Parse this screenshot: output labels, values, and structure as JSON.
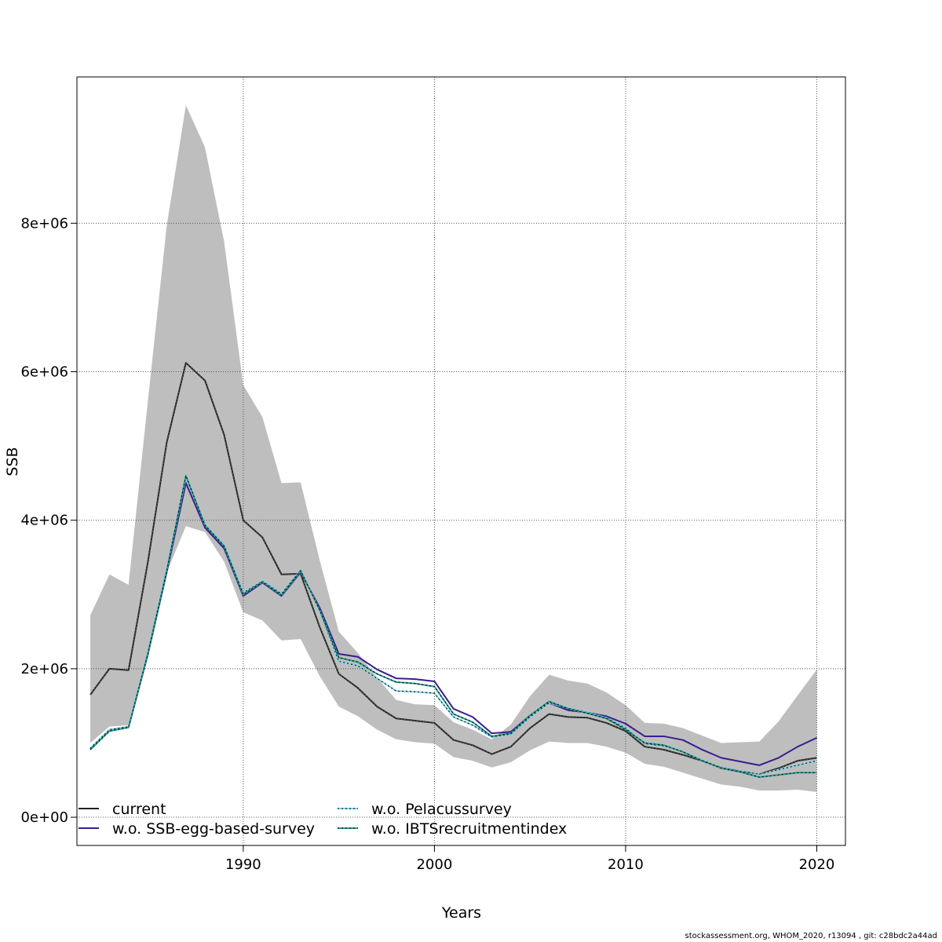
{
  "chart_data": {
    "type": "line",
    "xlabel": "Years",
    "ylabel": "SSB",
    "xlim": [
      1981.3,
      2021.5
    ],
    "ylim": [
      -380000,
      9970000
    ],
    "grid": true,
    "legend_position": "bottom-left",
    "x_ticks": [
      1990,
      2000,
      2010,
      2020
    ],
    "x_tick_labels": [
      "1990",
      "2000",
      "2010",
      "2020"
    ],
    "y_ticks": [
      0,
      2000000,
      4000000,
      6000000,
      8000000
    ],
    "y_tick_labels": [
      "0e+00",
      "2e+06",
      "4e+06",
      "6e+06",
      "8e+06"
    ],
    "x": [
      1982,
      1983,
      1984,
      1985,
      1986,
      1987,
      1988,
      1989,
      1990,
      1991,
      1992,
      1993,
      1994,
      1995,
      1996,
      1997,
      1998,
      1999,
      2000,
      2001,
      2002,
      2003,
      2004,
      2005,
      2006,
      2007,
      2008,
      2009,
      2010,
      2011,
      2012,
      2013,
      2014,
      2015,
      2016,
      2017,
      2018,
      2019,
      2020
    ],
    "confidence_band": {
      "color": "#bebebe",
      "upper": [
        2720000,
        3270000,
        3130000,
        5580000,
        7970000,
        9590000,
        9020000,
        7750000,
        5820000,
        5390000,
        4500000,
        4510000,
        3460000,
        2500000,
        2210000,
        1880000,
        1580000,
        1520000,
        1510000,
        1280000,
        1180000,
        1050000,
        1250000,
        1630000,
        1920000,
        1840000,
        1800000,
        1680000,
        1510000,
        1270000,
        1260000,
        1200000,
        1100000,
        1000000,
        1010000,
        1020000,
        1290000,
        1640000,
        1990000
      ],
      "lower": [
        1000000,
        1220000,
        1240000,
        2230000,
        3300000,
        3920000,
        3840000,
        3440000,
        2760000,
        2650000,
        2380000,
        2400000,
        1900000,
        1490000,
        1360000,
        1180000,
        1050000,
        1010000,
        990000,
        810000,
        760000,
        670000,
        740000,
        900000,
        1020000,
        1000000,
        1000000,
        950000,
        870000,
        720000,
        680000,
        600000,
        520000,
        440000,
        410000,
        360000,
        360000,
        370000,
        340000
      ]
    },
    "series": [
      {
        "name": "current",
        "color": "#222222",
        "dashed": false,
        "values": [
          1650000,
          2000000,
          1980000,
          3420000,
          5050000,
          6120000,
          5880000,
          5150000,
          4000000,
          3770000,
          3270000,
          3280000,
          2560000,
          1930000,
          1740000,
          1490000,
          1330000,
          1300000,
          1270000,
          1040000,
          970000,
          850000,
          950000,
          1200000,
          1390000,
          1350000,
          1340000,
          1270000,
          1160000,
          950000,
          910000,
          840000,
          760000,
          670000,
          620000,
          580000,
          660000,
          760000,
          800000
        ]
      },
      {
        "name": "w.o. SSB-egg-based-survey",
        "color": "#3b1d8f",
        "dashed": false,
        "values": [
          920000,
          1170000,
          1210000,
          2180000,
          3300000,
          4500000,
          3900000,
          3620000,
          2980000,
          3160000,
          2980000,
          3300000,
          2820000,
          2200000,
          2160000,
          1990000,
          1870000,
          1860000,
          1830000,
          1460000,
          1350000,
          1130000,
          1150000,
          1370000,
          1540000,
          1440000,
          1410000,
          1360000,
          1260000,
          1090000,
          1090000,
          1040000,
          910000,
          800000,
          750000,
          700000,
          800000,
          950000,
          1070000
        ]
      },
      {
        "name": "w.o. Pelacussurvey",
        "color": "#7fd4ea",
        "dashed": true,
        "values": [
          930000,
          1180000,
          1220000,
          2210000,
          3340000,
          4580000,
          3940000,
          3660000,
          3020000,
          3180000,
          3010000,
          3330000,
          2780000,
          2100000,
          2040000,
          1870000,
          1700000,
          1690000,
          1670000,
          1350000,
          1240000,
          1080000,
          1120000,
          1350000,
          1540000,
          1470000,
          1410000,
          1340000,
          1200000,
          990000,
          960000,
          880000,
          770000,
          670000,
          620000,
          580000,
          640000,
          700000,
          760000
        ]
      },
      {
        "name": "w.o. IBTSrecruitmentindex",
        "color": "#2a9d8f",
        "dashed": true,
        "values": [
          910000,
          1160000,
          1210000,
          2190000,
          3320000,
          4600000,
          3930000,
          3650000,
          3000000,
          3170000,
          2990000,
          3320000,
          2790000,
          2150000,
          2090000,
          1930000,
          1820000,
          1800000,
          1760000,
          1390000,
          1280000,
          1090000,
          1130000,
          1370000,
          1560000,
          1460000,
          1400000,
          1330000,
          1180000,
          1000000,
          970000,
          880000,
          760000,
          660000,
          610000,
          540000,
          570000,
          600000,
          600000
        ]
      }
    ]
  },
  "footer_text": "stockassessment.org, WHOM_2020, r13094 , git: c28bdc2a44ad"
}
